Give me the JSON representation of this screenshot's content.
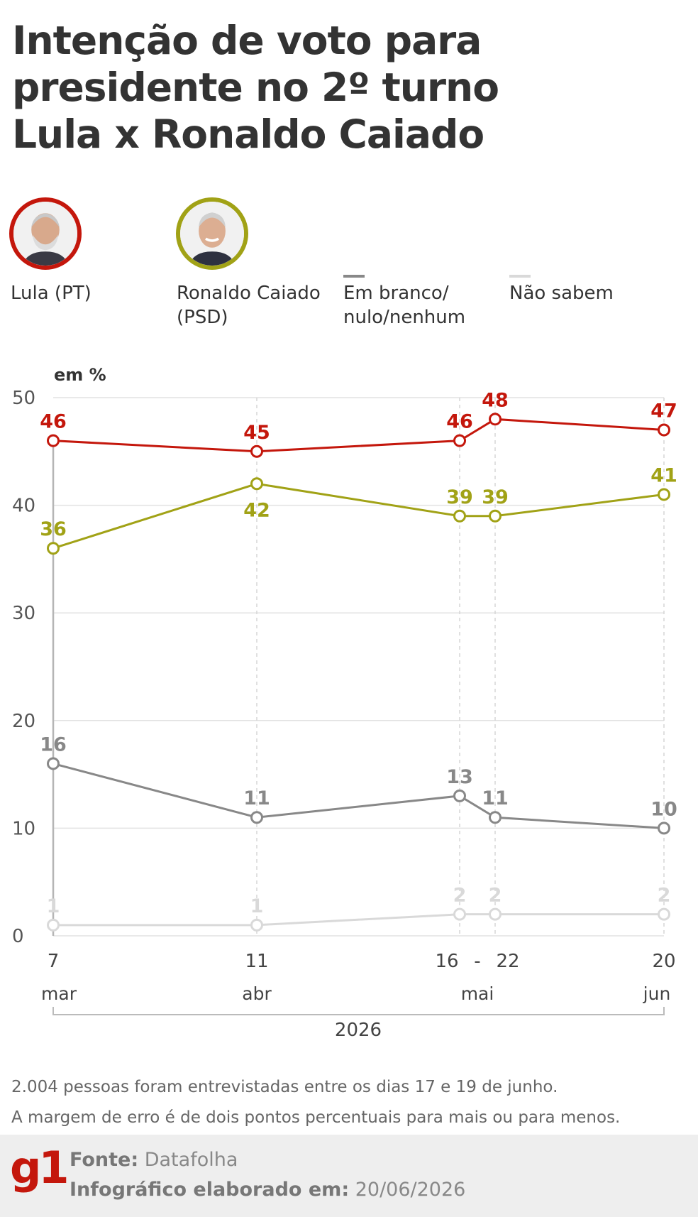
{
  "title_lines": [
    "Intenção de voto para",
    "presidente no 2º turno",
    "Lula x Ronaldo Caiado"
  ],
  "legend": {
    "lula": {
      "label": "Lula (PT)",
      "color": "#c4170c",
      "photo_icon": "lula-portrait-icon"
    },
    "caiado": {
      "label_line1": "Ronaldo Caiado",
      "label_line2": "(PSD)",
      "color": "#a1a216",
      "photo_icon": "caiado-portrait-icon"
    },
    "branco": {
      "label_line1": "Em branco/",
      "label_line2": "nulo/nenhum",
      "color": "#888888"
    },
    "naosabem": {
      "label": "Não sabem",
      "color": "#d9d9d9"
    }
  },
  "unit_label": "em %",
  "chart_data": {
    "type": "line",
    "x_days": [
      "7",
      "11",
      "16",
      "22",
      "20"
    ],
    "x_separator": "-",
    "x_months": [
      "mar",
      "abr",
      "mai",
      "jun"
    ],
    "x_year": "2026",
    "ylim": [
      0,
      50
    ],
    "yticks": [
      0,
      10,
      20,
      30,
      40,
      50
    ],
    "grid": true,
    "series": [
      {
        "name": "Lula (PT)",
        "color": "#c4170c",
        "values": [
          46,
          45,
          46,
          48,
          47
        ],
        "label_pos": [
          "above",
          "above",
          "above",
          "above",
          "above"
        ]
      },
      {
        "name": "Ronaldo Caiado (PSD)",
        "color": "#a1a216",
        "values": [
          36,
          42,
          39,
          39,
          41
        ],
        "label_pos": [
          "above",
          "below",
          "above",
          "above",
          "above"
        ]
      },
      {
        "name": "Em branco/nulo/nenhum",
        "color": "#888888",
        "values": [
          16,
          11,
          13,
          11,
          10
        ],
        "label_pos": [
          "above",
          "above",
          "above",
          "above",
          "above"
        ]
      },
      {
        "name": "Não sabem",
        "color": "#d9d9d9",
        "values": [
          1,
          1,
          2,
          2,
          2
        ],
        "label_pos": [
          "above",
          "above",
          "above",
          "above",
          "above"
        ]
      }
    ]
  },
  "notes": [
    "2.004 pessoas foram entrevistadas entre os dias 17 e 19 de junho.",
    "A margem de erro é de dois pontos percentuais para mais ou para menos."
  ],
  "footer": {
    "logo_text": "g1",
    "source_label": "Fonte:",
    "source_value": " Datafolha",
    "date_label": "Infográfico elaborado em:",
    "date_value": " 20/06/2026"
  }
}
